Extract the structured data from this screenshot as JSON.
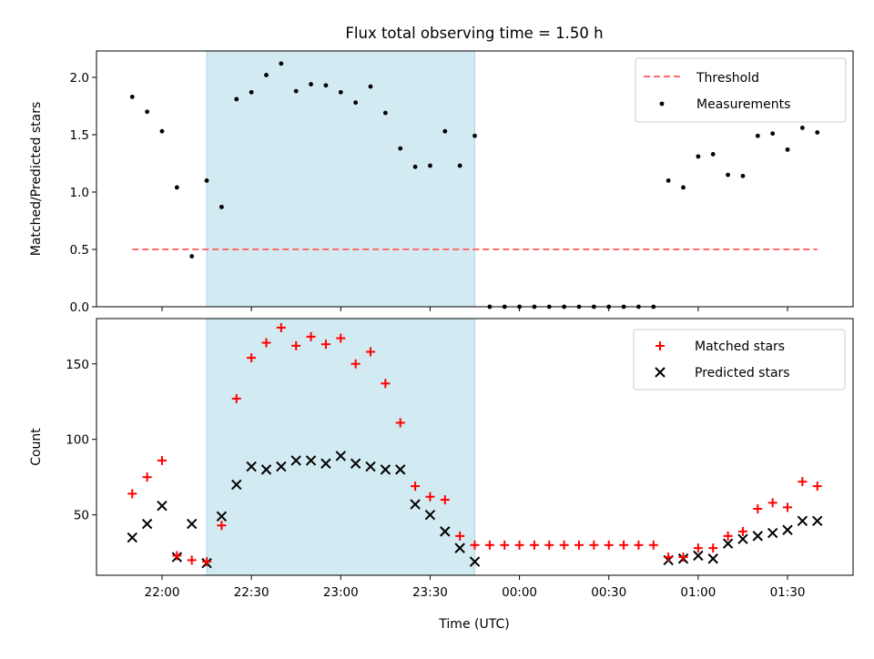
{
  "chart_data": {
    "type": "scatter",
    "title": "Flux total observing time = 1.50 h",
    "xlabel": "Time (UTC)",
    "x_tick_labels": [
      "22:00",
      "22:30",
      "23:00",
      "23:30",
      "00:00",
      "00:30",
      "01:00",
      "01:30"
    ],
    "x_tick_minutes": [
      0,
      30,
      60,
      90,
      120,
      150,
      180,
      210
    ],
    "x_range_minutes_after_22_00": [
      -22,
      232
    ],
    "observing_window_minutes": [
      15,
      105
    ],
    "observing_window_color": "#add8e6",
    "panels": [
      {
        "id": "ratio",
        "ylabel": "Matched/Predicted stars",
        "ylim": [
          0,
          2.23
        ],
        "y_ticks": [
          0.0,
          0.5,
          1.0,
          1.5,
          2.0
        ],
        "y_tick_labels": [
          "0.0",
          "0.5",
          "1.0",
          "1.5",
          "2.0"
        ],
        "legend": {
          "placement": "upper right",
          "entries": [
            "Threshold",
            "Measurements"
          ]
        },
        "threshold": {
          "name": "Threshold",
          "value": 0.5,
          "x_start": -10,
          "x_end": 220,
          "color": "#ff6b6b"
        },
        "measurements": {
          "name": "Measurements",
          "color": "#000000",
          "x": [
            -10,
            -5,
            0,
            5,
            10,
            15,
            20,
            25,
            30,
            35,
            40,
            45,
            50,
            55,
            60,
            65,
            70,
            75,
            80,
            85,
            90,
            95,
            100,
            105,
            110,
            115,
            120,
            125,
            130,
            135,
            140,
            145,
            150,
            155,
            160,
            165,
            170,
            175,
            180,
            185,
            190,
            195,
            200,
            205,
            210,
            215,
            220
          ],
          "y": [
            1.83,
            1.7,
            1.53,
            1.04,
            0.44,
            1.1,
            0.87,
            1.81,
            1.87,
            2.02,
            2.12,
            1.88,
            1.94,
            1.93,
            1.87,
            1.78,
            1.92,
            1.69,
            1.38,
            1.22,
            1.23,
            1.53,
            1.23,
            1.49,
            0,
            0,
            0,
            0,
            0,
            0,
            0,
            0,
            0,
            0,
            0,
            0,
            1.1,
            1.04,
            1.31,
            1.33,
            1.15,
            1.14,
            1.49,
            1.51,
            1.37,
            1.56,
            1.52
          ]
        }
      },
      {
        "id": "count",
        "ylabel": "Count",
        "ylim": [
          10,
          180
        ],
        "y_ticks": [
          50,
          100,
          150
        ],
        "y_tick_labels": [
          "50",
          "100",
          "150"
        ],
        "legend": {
          "placement": "upper right",
          "entries": [
            "Matched stars",
            "Predicted stars"
          ]
        },
        "series": [
          {
            "name": "Matched stars",
            "marker": "plus",
            "color": "#ff0000",
            "x": [
              -10,
              -5,
              0,
              5,
              10,
              15,
              20,
              25,
              30,
              35,
              40,
              45,
              50,
              55,
              60,
              65,
              70,
              75,
              80,
              85,
              90,
              95,
              100,
              105,
              110,
              115,
              120,
              125,
              130,
              135,
              140,
              145,
              150,
              155,
              160,
              165,
              170,
              175,
              180,
              185,
              190,
              195,
              200,
              205,
              210,
              215,
              220
            ],
            "y": [
              64,
              75,
              86,
              23,
              20,
              19,
              43,
              127,
              154,
              164,
              174,
              162,
              168,
              163,
              167,
              150,
              158,
              137,
              111,
              69,
              62,
              60,
              36,
              30,
              30,
              30,
              30,
              30,
              30,
              30,
              30,
              30,
              30,
              30,
              30,
              30,
              22,
              22,
              28,
              28,
              36,
              39,
              54,
              58,
              55,
              72,
              69
            ]
          },
          {
            "name": "Predicted stars",
            "marker": "x",
            "color": "#000000",
            "x": [
              -10,
              -5,
              0,
              5,
              10,
              15,
              20,
              25,
              30,
              35,
              40,
              45,
              50,
              55,
              60,
              65,
              70,
              75,
              80,
              85,
              90,
              95,
              100,
              105,
              170,
              175,
              180,
              185,
              190,
              195,
              200,
              205,
              210,
              215,
              220
            ],
            "y": [
              35,
              44,
              56,
              22,
              44,
              18,
              49,
              70,
              82,
              80,
              82,
              86,
              86,
              84,
              89,
              84,
              82,
              80,
              80,
              57,
              50,
              39,
              28,
              19,
              20,
              21,
              23,
              21,
              31,
              34,
              36,
              38,
              40,
              46,
              46
            ]
          }
        ]
      }
    ]
  }
}
